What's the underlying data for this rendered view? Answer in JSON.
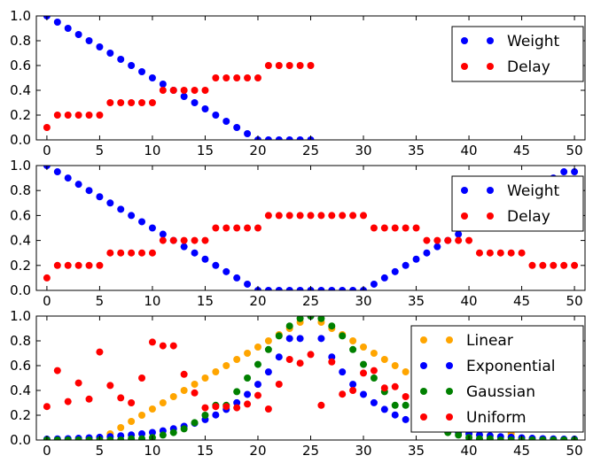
{
  "chart_data": [
    {
      "type": "scatter",
      "xlim": [
        -1,
        51
      ],
      "ylim": [
        0,
        1
      ],
      "xticks": [
        0,
        5,
        10,
        15,
        20,
        25,
        30,
        35,
        40,
        45,
        50
      ],
      "yticks": [
        0.0,
        0.2,
        0.4,
        0.6,
        0.8,
        1.0
      ],
      "xtick_labels": [
        "0",
        "5",
        "10",
        "15",
        "20",
        "25",
        "30",
        "35",
        "40",
        "45",
        "50"
      ],
      "ytick_labels": [
        "0.0",
        "0.2",
        "0.4",
        "0.6",
        "0.8",
        "1.0"
      ],
      "grid": false,
      "legend_position": "top-right",
      "series": [
        {
          "name": "Weight",
          "color": "#0000ff",
          "x": [
            0,
            1,
            2,
            3,
            4,
            5,
            6,
            7,
            8,
            9,
            10,
            11,
            12,
            13,
            14,
            15,
            16,
            17,
            18,
            19,
            20,
            21,
            22,
            23,
            24,
            25
          ],
          "y": [
            1.0,
            0.95,
            0.9,
            0.85,
            0.8,
            0.75,
            0.7,
            0.65,
            0.6,
            0.55,
            0.5,
            0.45,
            0.4,
            0.35,
            0.3,
            0.25,
            0.2,
            0.15,
            0.1,
            0.05,
            0.0,
            0.0,
            0.0,
            0.0,
            0.0,
            0.0
          ]
        },
        {
          "name": "Delay",
          "color": "#ff0000",
          "x": [
            0,
            1,
            2,
            3,
            4,
            5,
            6,
            7,
            8,
            9,
            10,
            11,
            12,
            13,
            14,
            15,
            16,
            17,
            18,
            19,
            20,
            21,
            22,
            23,
            24,
            25
          ],
          "y": [
            0.1,
            0.2,
            0.2,
            0.2,
            0.2,
            0.2,
            0.3,
            0.3,
            0.3,
            0.3,
            0.3,
            0.4,
            0.4,
            0.4,
            0.4,
            0.4,
            0.5,
            0.5,
            0.5,
            0.5,
            0.5,
            0.6,
            0.6,
            0.6,
            0.6,
            0.6
          ]
        }
      ]
    },
    {
      "type": "scatter",
      "xlim": [
        -1,
        51
      ],
      "ylim": [
        0,
        1
      ],
      "xticks": [
        0,
        5,
        10,
        15,
        20,
        25,
        30,
        35,
        40,
        45,
        50
      ],
      "yticks": [
        0.0,
        0.2,
        0.4,
        0.6,
        0.8,
        1.0
      ],
      "xtick_labels": [
        "0",
        "5",
        "10",
        "15",
        "20",
        "25",
        "30",
        "35",
        "40",
        "45",
        "50"
      ],
      "ytick_labels": [
        "0.0",
        "0.2",
        "0.4",
        "0.6",
        "0.8",
        "1.0"
      ],
      "grid": false,
      "legend_position": "top-right",
      "series": [
        {
          "name": "Weight",
          "color": "#0000ff",
          "x": [
            0,
            1,
            2,
            3,
            4,
            5,
            6,
            7,
            8,
            9,
            10,
            11,
            12,
            13,
            14,
            15,
            16,
            17,
            18,
            19,
            20,
            21,
            22,
            23,
            24,
            25,
            26,
            27,
            28,
            29,
            30,
            31,
            32,
            33,
            34,
            35,
            36,
            37,
            38,
            39,
            40,
            41,
            42,
            43,
            44,
            45,
            46,
            47,
            48,
            49,
            50
          ],
          "y": [
            1.0,
            0.95,
            0.9,
            0.85,
            0.8,
            0.75,
            0.7,
            0.65,
            0.6,
            0.55,
            0.5,
            0.45,
            0.4,
            0.35,
            0.3,
            0.25,
            0.2,
            0.15,
            0.1,
            0.05,
            0.0,
            0.0,
            0.0,
            0.0,
            0.0,
            0.0,
            0.0,
            0.0,
            0.0,
            0.0,
            0.0,
            0.05,
            0.1,
            0.15,
            0.2,
            0.25,
            0.3,
            0.35,
            0.4,
            0.45,
            0.5,
            0.55,
            0.6,
            0.65,
            0.7,
            0.75,
            0.8,
            0.85,
            0.9,
            0.95,
            0.95
          ]
        },
        {
          "name": "Delay",
          "color": "#ff0000",
          "x": [
            0,
            1,
            2,
            3,
            4,
            5,
            6,
            7,
            8,
            9,
            10,
            11,
            12,
            13,
            14,
            15,
            16,
            17,
            18,
            19,
            20,
            21,
            22,
            23,
            24,
            25,
            26,
            27,
            28,
            29,
            30,
            31,
            32,
            33,
            34,
            35,
            36,
            37,
            38,
            39,
            40,
            41,
            42,
            43,
            44,
            45,
            46,
            47,
            48,
            49,
            50
          ],
          "y": [
            0.1,
            0.2,
            0.2,
            0.2,
            0.2,
            0.2,
            0.3,
            0.3,
            0.3,
            0.3,
            0.3,
            0.4,
            0.4,
            0.4,
            0.4,
            0.4,
            0.5,
            0.5,
            0.5,
            0.5,
            0.5,
            0.6,
            0.6,
            0.6,
            0.6,
            0.6,
            0.6,
            0.6,
            0.6,
            0.6,
            0.6,
            0.5,
            0.5,
            0.5,
            0.5,
            0.5,
            0.4,
            0.4,
            0.4,
            0.4,
            0.4,
            0.3,
            0.3,
            0.3,
            0.3,
            0.3,
            0.2,
            0.2,
            0.2,
            0.2,
            0.2
          ]
        }
      ]
    },
    {
      "type": "scatter",
      "xlim": [
        -1,
        51
      ],
      "ylim": [
        0,
        1
      ],
      "xticks": [
        0,
        5,
        10,
        15,
        20,
        25,
        30,
        35,
        40,
        45,
        50
      ],
      "yticks": [
        0.0,
        0.2,
        0.4,
        0.6,
        0.8,
        1.0
      ],
      "xtick_labels": [
        "0",
        "5",
        "10",
        "15",
        "20",
        "25",
        "30",
        "35",
        "40",
        "45",
        "50"
      ],
      "ytick_labels": [
        "0.0",
        "0.2",
        "0.4",
        "0.6",
        "0.8",
        "1.0"
      ],
      "grid": false,
      "legend_position": "top-right",
      "series": [
        {
          "name": "Linear",
          "color": "#ffa500",
          "x": [
            0,
            1,
            2,
            3,
            4,
            5,
            6,
            7,
            8,
            9,
            10,
            11,
            12,
            13,
            14,
            15,
            16,
            17,
            18,
            19,
            20,
            21,
            22,
            23,
            24,
            25,
            26,
            27,
            28,
            29,
            30,
            31,
            32,
            33,
            34,
            35,
            36,
            37,
            38,
            39,
            40,
            41,
            42,
            43,
            44,
            45,
            46,
            47,
            48,
            49,
            50
          ],
          "y": [
            0.0,
            0.0,
            0.0,
            0.0,
            0.0,
            0.0,
            0.05,
            0.1,
            0.15,
            0.2,
            0.25,
            0.3,
            0.35,
            0.4,
            0.45,
            0.5,
            0.55,
            0.6,
            0.65,
            0.7,
            0.75,
            0.8,
            0.85,
            0.9,
            0.95,
            1.0,
            0.95,
            0.9,
            0.85,
            0.8,
            0.75,
            0.7,
            0.65,
            0.6,
            0.55,
            0.5,
            0.45,
            0.4,
            0.35,
            0.3,
            0.25,
            0.2,
            0.15,
            0.1,
            0.05,
            0.0,
            0.0,
            0.0,
            0.0,
            0.0,
            0.0
          ]
        },
        {
          "name": "Exponential",
          "color": "#0000ff",
          "x": [
            0,
            1,
            2,
            3,
            4,
            5,
            6,
            7,
            8,
            9,
            10,
            11,
            12,
            13,
            14,
            15,
            16,
            17,
            18,
            19,
            20,
            21,
            22,
            23,
            24,
            25,
            26,
            27,
            28,
            29,
            30,
            31,
            32,
            33,
            34,
            35,
            36,
            37,
            38,
            39,
            40,
            41,
            42,
            43,
            44,
            45,
            46,
            47,
            48,
            49,
            50
          ],
          "y": [
            0.007,
            0.009,
            0.011,
            0.014,
            0.018,
            0.022,
            0.027,
            0.034,
            0.041,
            0.05,
            0.061,
            0.074,
            0.091,
            0.111,
            0.135,
            0.165,
            0.202,
            0.247,
            0.301,
            0.368,
            0.449,
            0.549,
            0.67,
            0.819,
            0.819,
            1.0,
            0.819,
            0.67,
            0.549,
            0.449,
            0.368,
            0.301,
            0.247,
            0.202,
            0.165,
            0.135,
            0.111,
            0.091,
            0.074,
            0.061,
            0.05,
            0.041,
            0.034,
            0.027,
            0.022,
            0.018,
            0.014,
            0.011,
            0.009,
            0.007,
            0.007
          ]
        },
        {
          "name": "Gaussian",
          "color": "#008000",
          "x": [
            0,
            1,
            2,
            3,
            4,
            5,
            6,
            7,
            8,
            9,
            10,
            11,
            12,
            13,
            14,
            15,
            16,
            17,
            18,
            19,
            20,
            21,
            22,
            23,
            24,
            25,
            26,
            27,
            28,
            29,
            30,
            31,
            32,
            33,
            34,
            35,
            36,
            37,
            38,
            39,
            40,
            41,
            42,
            43,
            44,
            45,
            46,
            47,
            48,
            49,
            50
          ],
          "y": [
            0.0,
            0.0,
            0.0,
            0.0,
            0.0,
            0.0,
            0.0,
            0.0,
            0.01,
            0.01,
            0.02,
            0.04,
            0.06,
            0.09,
            0.14,
            0.2,
            0.28,
            0.28,
            0.39,
            0.5,
            0.61,
            0.73,
            0.84,
            0.92,
            0.98,
            1.0,
            0.98,
            0.92,
            0.84,
            0.73,
            0.61,
            0.5,
            0.39,
            0.28,
            0.28,
            0.2,
            0.14,
            0.09,
            0.06,
            0.04,
            0.02,
            0.01,
            0.01,
            0.0,
            0.0,
            0.0,
            0.0,
            0.0,
            0.0,
            0.0,
            0.0
          ]
        },
        {
          "name": "Uniform",
          "color": "#ff0000",
          "x": [
            0,
            1,
            2,
            3,
            4,
            5,
            6,
            7,
            8,
            9,
            10,
            11,
            12,
            13,
            14,
            15,
            16,
            17,
            18,
            19,
            20,
            21,
            22,
            23,
            24,
            25,
            26,
            27,
            28,
            29,
            30,
            31,
            32,
            33,
            34,
            35,
            36,
            37,
            38,
            39,
            40,
            41,
            42,
            43,
            44,
            45,
            46,
            47,
            48,
            49,
            50
          ],
          "y": [
            0.27,
            0.56,
            0.31,
            0.46,
            0.33,
            0.71,
            0.44,
            0.34,
            0.3,
            0.5,
            0.79,
            0.76,
            0.76,
            0.53,
            0.38,
            0.26,
            0.27,
            0.27,
            0.26,
            0.29,
            0.36,
            0.25,
            0.45,
            0.65,
            0.62,
            0.69,
            0.28,
            0.63,
            0.37,
            0.4,
            0.54,
            0.56,
            0.42,
            0.43,
            0.35,
            0.21,
            0.21,
            0.27,
            0.21,
            0.26,
            0.29,
            0.26,
            0.31,
            0.34,
            0.29,
            0.39,
            0.33,
            0.26,
            0.37,
            0.29,
            0.66
          ]
        }
      ]
    }
  ]
}
